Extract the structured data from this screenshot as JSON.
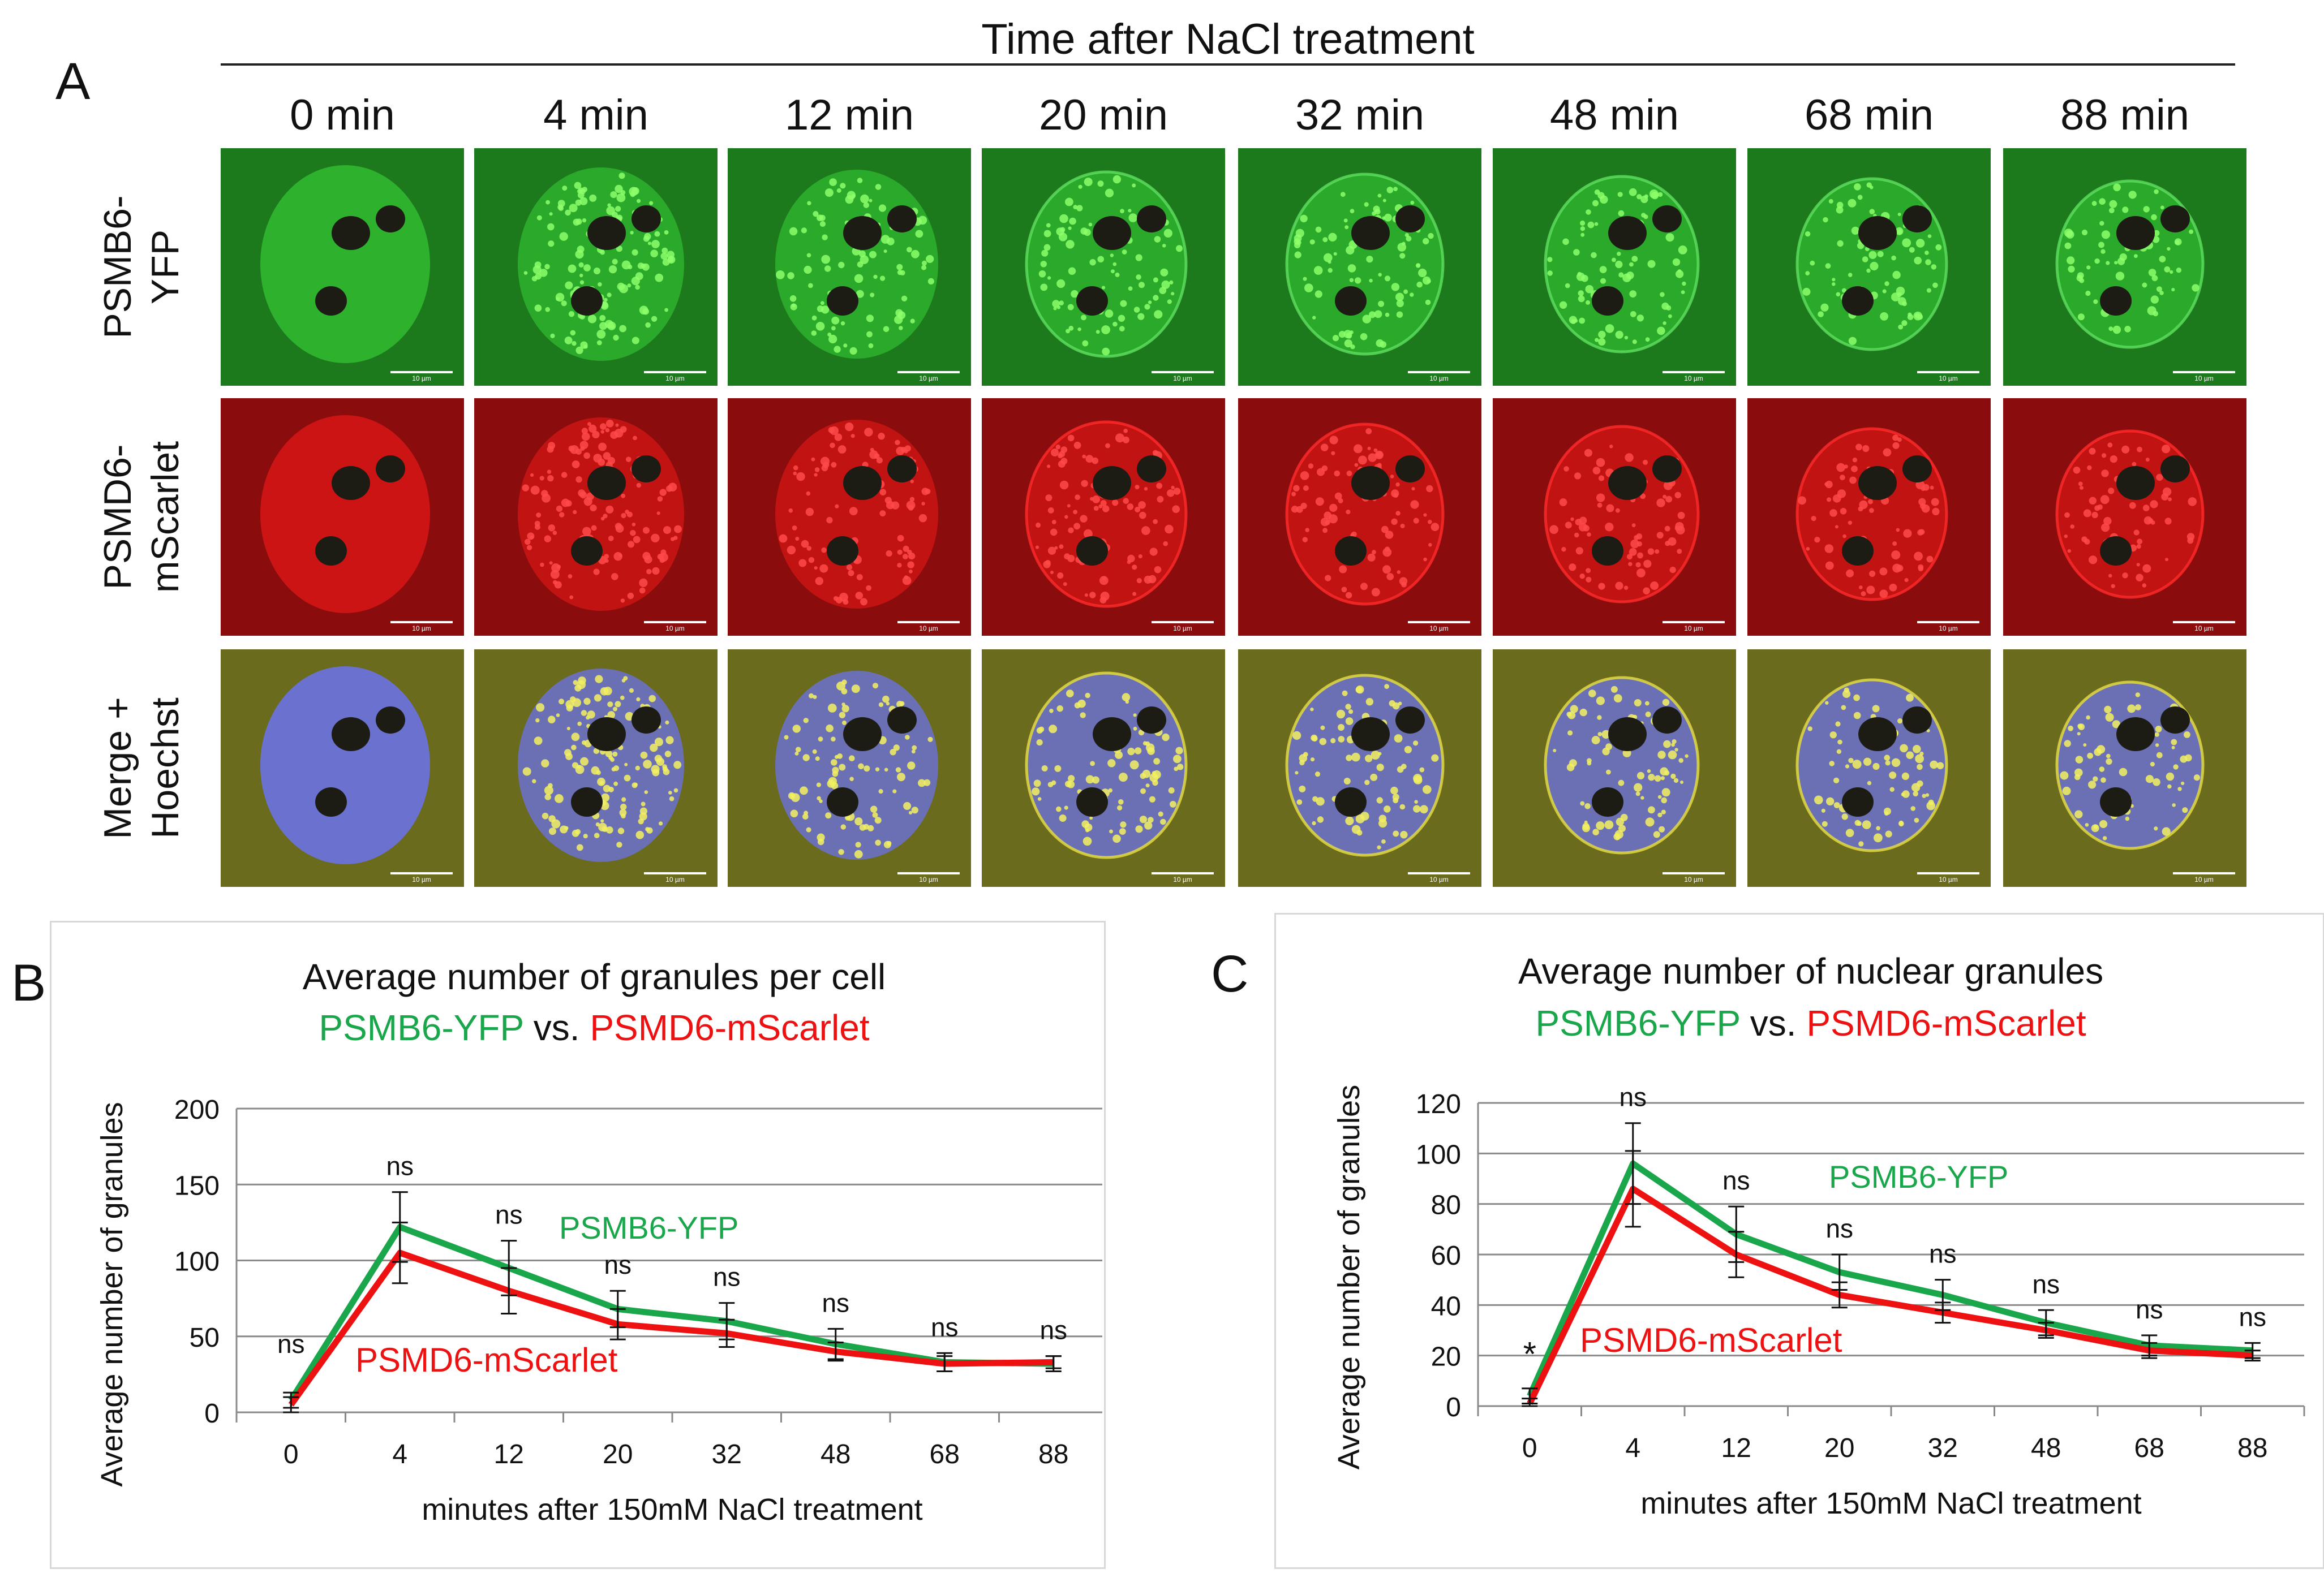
{
  "panel_a": {
    "letter": "A",
    "title": "Time after NaCl treatment",
    "timepoints": [
      "0 min",
      "4 min",
      "12 min",
      "20 min",
      "32 min",
      "48 min",
      "68 min",
      "88 min"
    ],
    "rows": [
      {
        "label_line1": "PSMB6-",
        "label_line2": "YFP",
        "channel": "green"
      },
      {
        "label_line1": "PSMD6-",
        "label_line2": "mScarlet",
        "channel": "red"
      },
      {
        "label_line1": "Merge +",
        "label_line2": "Hoechst",
        "channel": "merge"
      }
    ],
    "scale_bar_label": "10 µm"
  },
  "colors": {
    "yfp": "#1aa64a",
    "mscarlet": "#ee1111",
    "green_channel": "#2fb52f",
    "red_channel": "#d01515",
    "merge_bg": "#6b6b1e",
    "hoechst": "#6a72d8",
    "nucleolus": "#1c1c14"
  },
  "chart_data": [
    {
      "type": "line",
      "panel_letter": "B",
      "title": "Average number of granules per cell",
      "subtitle": {
        "left": "PSMB6-YFP",
        "middle": " vs. ",
        "right": "PSMD6-mScarlet"
      },
      "xlabel": "minutes after 150mM NaCl treatment",
      "ylabel": "Average number of granules",
      "categories": [
        "0",
        "4",
        "12",
        "20",
        "32",
        "48",
        "68",
        "88"
      ],
      "ylim": [
        0,
        200
      ],
      "yticks": [
        0,
        50,
        100,
        150,
        200
      ],
      "grid": true,
      "series": [
        {
          "name": "PSMB6-YFP",
          "color": "#1aa64a",
          "values": [
            8,
            122,
            95,
            68,
            60,
            45,
            33,
            32
          ],
          "errors": [
            5,
            23,
            18,
            12,
            12,
            10,
            6,
            5
          ]
        },
        {
          "name": "PSMD6-mScarlet",
          "color": "#ee1111",
          "values": [
            5,
            105,
            80,
            58,
            52,
            40,
            32,
            33
          ],
          "errors": [
            5,
            20,
            15,
            10,
            9,
            6,
            5,
            4
          ]
        }
      ],
      "significance": [
        "ns",
        "ns",
        "ns",
        "ns",
        "ns",
        "ns",
        "ns",
        "ns"
      ],
      "series_labels": {
        "green": "PSMB6-YFP",
        "red": "PSMD6-mScarlet"
      }
    },
    {
      "type": "line",
      "panel_letter": "C",
      "title": "Average number of nuclear granules",
      "subtitle": {
        "left": "PSMB6-YFP",
        "middle": " vs. ",
        "right": "PSMD6-mScarlet"
      },
      "xlabel": "minutes after 150mM NaCl treatment",
      "ylabel": "Average number of granules",
      "categories": [
        "0",
        "4",
        "12",
        "20",
        "32",
        "48",
        "68",
        "88"
      ],
      "ylim": [
        0,
        120
      ],
      "yticks": [
        0,
        20,
        40,
        60,
        80,
        100,
        120
      ],
      "grid": true,
      "series": [
        {
          "name": "PSMB6-YFP",
          "color": "#1aa64a",
          "values": [
            4,
            96,
            68,
            53,
            44,
            33,
            24,
            22
          ],
          "errors": [
            3,
            16,
            11,
            7,
            6,
            5,
            4,
            3
          ]
        },
        {
          "name": "PSMD6-mScarlet",
          "color": "#ee1111",
          "values": [
            1,
            86,
            60,
            44,
            37,
            30,
            22,
            20
          ],
          "errors": [
            2,
            15,
            9,
            5,
            4,
            3,
            3,
            2
          ]
        }
      ],
      "significance": [
        "*",
        "ns",
        "ns",
        "ns",
        "ns",
        "ns",
        "ns",
        "ns"
      ],
      "series_labels": {
        "green": "PSMB6-YFP",
        "red": "PSMD6-mScarlet"
      }
    }
  ]
}
